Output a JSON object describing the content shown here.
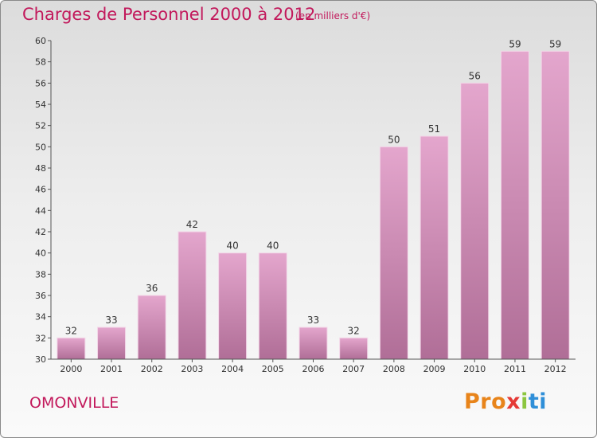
{
  "chart_data": {
    "type": "bar",
    "title": "Charges de Personnel 2000 à 2012",
    "subtitle": "(en milliers d'€)",
    "categories": [
      "2000",
      "2001",
      "2002",
      "2003",
      "2004",
      "2005",
      "2006",
      "2007",
      "2008",
      "2009",
      "2010",
      "2011",
      "2012"
    ],
    "values": [
      32,
      33,
      36,
      42,
      40,
      40,
      33,
      32,
      50,
      51,
      56,
      59,
      59
    ],
    "ylim": [
      30,
      60
    ],
    "yticks": [
      30,
      32,
      34,
      36,
      38,
      40,
      42,
      44,
      46,
      48,
      50,
      52,
      54,
      56,
      58,
      60
    ],
    "bar_color": "#d88ab8",
    "grid": false
  },
  "footer": {
    "commune": "OMONVILLE",
    "logo": {
      "part1": "Pro",
      "part2": "x",
      "part3": "i",
      "part4": "ti"
    }
  },
  "colors": {
    "title": "#c2185b",
    "bar_top": "#e4a6cd",
    "bar_bottom": "#b26f98"
  }
}
